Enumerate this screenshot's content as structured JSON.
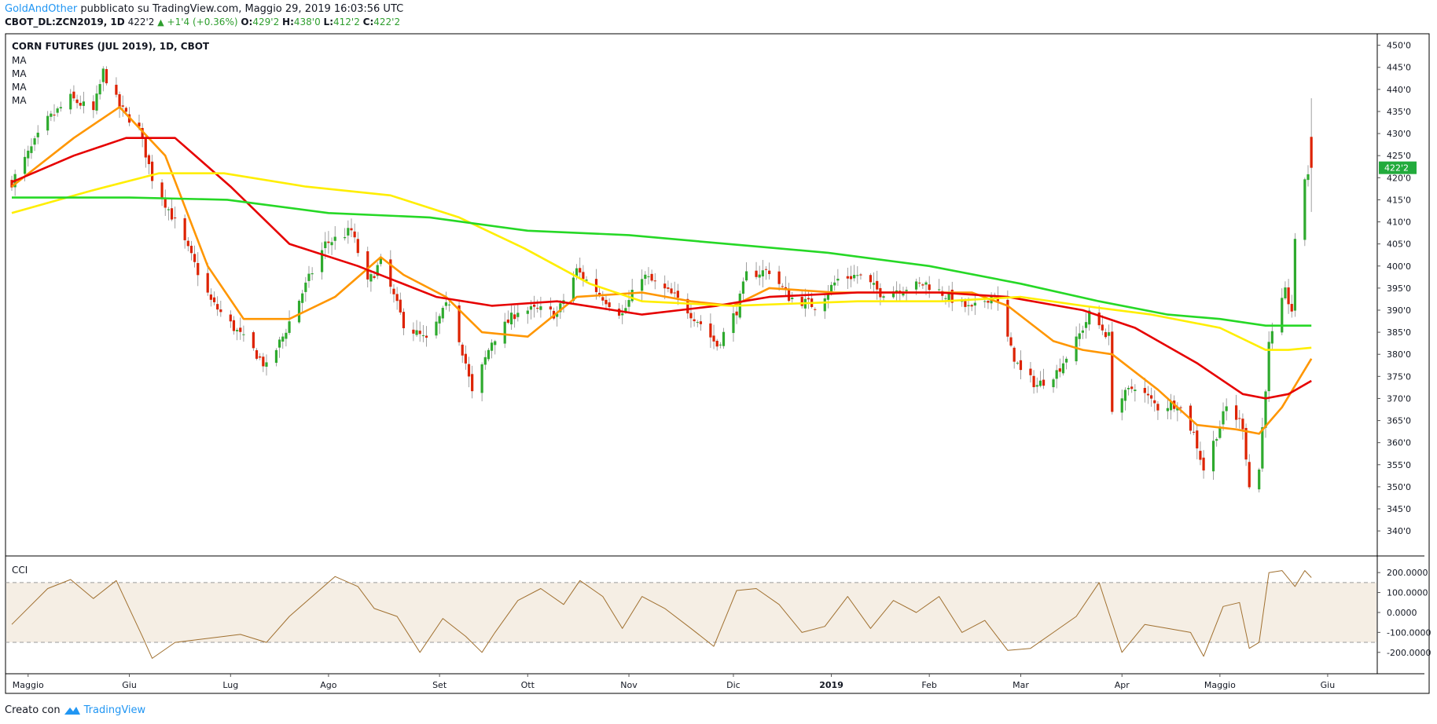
{
  "header": {
    "author": "GoldAndOther",
    "published": "pubblicato su TradingView.com, Maggio 29, 2019 16:03:56 UTC",
    "symbol": "CBOT_DL:ZCN2019, 1D",
    "last": "422'2",
    "change": "+1'4 (+0.36%)",
    "o_label": "O:",
    "o_value": "429'2",
    "h_label": "H:",
    "h_value": "438'0",
    "l_label": "L:",
    "l_value": "412'2",
    "c_label": "C:",
    "c_value": "422'2"
  },
  "footer": {
    "created_with": "Creato con",
    "brand": "TradingView"
  },
  "colors": {
    "up": "#2eaa2e",
    "down": "#dd2200",
    "ma_fast": "#ff9600",
    "ma_mid": "#e60000",
    "ma_slow": "#ffee00",
    "ma_long": "#26d826",
    "cci_line": "#a07030",
    "cci_band": "#f5eee4",
    "price_tag": "#22ab3c"
  },
  "chart_data": [
    {
      "type": "candlestick",
      "title": "CORN FUTURES (JUL 2019), 1D, CBOT",
      "indicators": [
        "MA",
        "MA",
        "MA",
        "MA"
      ],
      "y_unit": "US cents/bushel (quoted in fractional ticks)",
      "ylim": [
        337,
        451
      ],
      "y_ticks": [
        340,
        345,
        350,
        355,
        360,
        365,
        370,
        375,
        380,
        385,
        390,
        395,
        400,
        405,
        410,
        415,
        420,
        425,
        430,
        435,
        440,
        445,
        450
      ],
      "y_tick_labels": [
        "340'0",
        "345'0",
        "350'0",
        "355'0",
        "360'0",
        "365'0",
        "370'0",
        "375'0",
        "380'0",
        "385'0",
        "390'0",
        "395'0",
        "400'0",
        "405'0",
        "410'0",
        "415'0",
        "420'0",
        "425'0",
        "430'0",
        "435'0",
        "440'0",
        "445'0",
        "450'0"
      ],
      "last_price_label": "422'2",
      "last_price": 422.25,
      "x_labels": [
        "Maggio",
        "Giu",
        "Lug",
        "Ago",
        "Set",
        "Ott",
        "Nov",
        "Dic",
        "2019",
        "Feb",
        "Mar",
        "Apr",
        "Maggio",
        "Giu"
      ],
      "x_label_dates": [
        "2018-05-01",
        "2018-06-01",
        "2018-07-02",
        "2018-08-01",
        "2018-09-04",
        "2018-10-01",
        "2018-11-01",
        "2018-12-03",
        "2019-01-02",
        "2019-02-01",
        "2019-03-01",
        "2019-04-01",
        "2019-05-01",
        "2019-06-03"
      ],
      "price_path": [
        [
          "2018-04-26",
          419
        ],
        [
          "2018-05-07",
          433
        ],
        [
          "2018-05-14",
          438
        ],
        [
          "2018-05-21",
          435
        ],
        [
          "2018-05-24",
          444
        ],
        [
          "2018-05-29",
          436
        ],
        [
          "2018-06-04",
          431
        ],
        [
          "2018-06-08",
          420
        ],
        [
          "2018-06-15",
          410
        ],
        [
          "2018-06-20",
          402
        ],
        [
          "2018-06-26",
          392
        ],
        [
          "2018-07-03",
          386
        ],
        [
          "2018-07-10",
          380
        ],
        [
          "2018-07-13",
          377
        ],
        [
          "2018-07-18",
          384
        ],
        [
          "2018-07-24",
          394
        ],
        [
          "2018-07-31",
          405
        ],
        [
          "2018-08-08",
          408
        ],
        [
          "2018-08-13",
          396
        ],
        [
          "2018-08-17",
          401
        ],
        [
          "2018-08-24",
          387
        ],
        [
          "2018-08-31",
          383
        ],
        [
          "2018-09-07",
          392
        ],
        [
          "2018-09-12",
          378
        ],
        [
          "2018-09-14",
          371
        ],
        [
          "2018-09-20",
          383
        ],
        [
          "2018-09-28",
          390
        ],
        [
          "2018-10-05",
          390
        ],
        [
          "2018-10-10",
          389
        ],
        [
          "2018-10-16",
          399
        ],
        [
          "2018-10-24",
          393
        ],
        [
          "2018-10-30",
          389
        ],
        [
          "2018-11-05",
          398
        ],
        [
          "2018-11-09",
          396
        ],
        [
          "2018-11-15",
          393
        ],
        [
          "2018-11-23",
          387
        ],
        [
          "2018-11-28",
          382
        ],
        [
          "2018-12-04",
          390
        ],
        [
          "2018-12-07",
          398
        ],
        [
          "2018-12-14",
          399
        ],
        [
          "2018-12-20",
          393
        ],
        [
          "2018-12-28",
          391
        ],
        [
          "2019-01-04",
          397
        ],
        [
          "2019-01-10",
          398
        ],
        [
          "2019-01-17",
          394
        ],
        [
          "2019-01-24",
          395
        ],
        [
          "2019-01-31",
          396
        ],
        [
          "2019-02-07",
          393
        ],
        [
          "2019-02-14",
          390
        ],
        [
          "2019-02-21",
          394
        ],
        [
          "2019-02-26",
          381
        ],
        [
          "2019-03-01",
          376
        ],
        [
          "2019-03-06",
          373
        ],
        [
          "2019-03-12",
          376
        ],
        [
          "2019-03-18",
          383
        ],
        [
          "2019-03-22",
          389
        ],
        [
          "2019-03-28",
          384
        ],
        [
          "2019-03-29",
          368
        ],
        [
          "2019-04-05",
          373
        ],
        [
          "2019-04-12",
          368
        ],
        [
          "2019-04-18",
          369
        ],
        [
          "2019-04-23",
          362
        ],
        [
          "2019-04-26",
          354
        ],
        [
          "2019-04-30",
          362
        ],
        [
          "2019-05-03",
          368
        ],
        [
          "2019-05-08",
          364
        ],
        [
          "2019-05-10",
          350
        ],
        [
          "2019-05-13",
          354
        ],
        [
          "2019-05-16",
          382
        ],
        [
          "2019-05-21",
          394
        ],
        [
          "2019-05-23",
          390
        ],
        [
          "2019-05-24",
          405
        ],
        [
          "2019-05-27",
          420
        ],
        [
          "2019-05-29",
          422.25
        ]
      ],
      "moving_averages": [
        {
          "color": "#ff9600",
          "path": [
            [
              "2018-04-26",
              418
            ],
            [
              "2018-05-15",
              429
            ],
            [
              "2018-05-29",
              436
            ],
            [
              "2018-06-12",
              425
            ],
            [
              "2018-06-25",
              400
            ],
            [
              "2018-07-06",
              388
            ],
            [
              "2018-07-20",
              388
            ],
            [
              "2018-08-03",
              393
            ],
            [
              "2018-08-17",
              402
            ],
            [
              "2018-08-24",
              398
            ],
            [
              "2018-09-06",
              393
            ],
            [
              "2018-09-17",
              385
            ],
            [
              "2018-10-01",
              384
            ],
            [
              "2018-10-16",
              393
            ],
            [
              "2018-11-05",
              394
            ],
            [
              "2018-11-20",
              392
            ],
            [
              "2018-12-03",
              391
            ],
            [
              "2018-12-14",
              395
            ],
            [
              "2019-01-03",
              394
            ],
            [
              "2019-01-24",
              394
            ],
            [
              "2019-02-14",
              394
            ],
            [
              "2019-02-25",
              391
            ],
            [
              "2019-03-11",
              383
            ],
            [
              "2019-03-20",
              381
            ],
            [
              "2019-03-29",
              380
            ],
            [
              "2019-04-12",
              372
            ],
            [
              "2019-04-24",
              364
            ],
            [
              "2019-05-06",
              363
            ],
            [
              "2019-05-13",
              362
            ],
            [
              "2019-05-20",
              368
            ],
            [
              "2019-05-29",
              379
            ]
          ]
        },
        {
          "color": "#e60000",
          "path": [
            [
              "2018-04-26",
              419
            ],
            [
              "2018-05-15",
              425
            ],
            [
              "2018-05-31",
              429
            ],
            [
              "2018-06-15",
              429
            ],
            [
              "2018-07-02",
              418
            ],
            [
              "2018-07-20",
              405
            ],
            [
              "2018-08-10",
              400
            ],
            [
              "2018-09-03",
              393
            ],
            [
              "2018-09-20",
              391
            ],
            [
              "2018-10-10",
              392
            ],
            [
              "2018-11-05",
              389
            ],
            [
              "2018-11-28",
              391
            ],
            [
              "2018-12-14",
              393
            ],
            [
              "2019-01-10",
              394
            ],
            [
              "2019-02-04",
              394
            ],
            [
              "2019-02-25",
              393
            ],
            [
              "2019-03-20",
              390
            ],
            [
              "2019-04-05",
              386
            ],
            [
              "2019-04-24",
              378
            ],
            [
              "2019-05-08",
              371
            ],
            [
              "2019-05-15",
              370
            ],
            [
              "2019-05-22",
              371
            ],
            [
              "2019-05-29",
              374
            ]
          ]
        },
        {
          "color": "#ffee00",
          "path": [
            [
              "2018-04-26",
              412
            ],
            [
              "2018-05-20",
              417
            ],
            [
              "2018-06-10",
              421
            ],
            [
              "2018-06-30",
              421
            ],
            [
              "2018-07-25",
              418
            ],
            [
              "2018-08-20",
              416
            ],
            [
              "2018-09-10",
              411
            ],
            [
              "2018-09-30",
              404
            ],
            [
              "2018-10-20",
              396
            ],
            [
              "2018-11-05",
              392
            ],
            [
              "2018-12-03",
              391
            ],
            [
              "2019-01-10",
              392
            ],
            [
              "2019-02-05",
              392
            ],
            [
              "2019-03-01",
              393
            ],
            [
              "2019-03-20",
              391
            ],
            [
              "2019-04-10",
              389
            ],
            [
              "2019-05-01",
              386
            ],
            [
              "2019-05-15",
              381
            ],
            [
              "2019-05-22",
              381
            ],
            [
              "2019-05-29",
              381.5
            ]
          ]
        },
        {
          "color": "#26d826",
          "path": [
            [
              "2018-04-26",
              415.5
            ],
            [
              "2018-06-01",
              415.5
            ],
            [
              "2018-07-01",
              415
            ],
            [
              "2018-08-01",
              412
            ],
            [
              "2018-09-01",
              411
            ],
            [
              "2018-10-01",
              408
            ],
            [
              "2018-11-01",
              407
            ],
            [
              "2018-12-01",
              405
            ],
            [
              "2019-01-01",
              403
            ],
            [
              "2019-02-01",
              400
            ],
            [
              "2019-03-01",
              396
            ],
            [
              "2019-03-25",
              392
            ],
            [
              "2019-04-15",
              389
            ],
            [
              "2019-05-01",
              388
            ],
            [
              "2019-05-15",
              386.5
            ],
            [
              "2019-05-29",
              386.5
            ]
          ]
        }
      ]
    },
    {
      "type": "line",
      "title": "CCI",
      "ylim": [
        -260,
        240
      ],
      "y_ticks": [
        200,
        100,
        0,
        -100,
        -200
      ],
      "y_tick_labels": [
        "200.0000",
        "100.0000",
        "0.0000",
        "-100.0000",
        "-200.0000"
      ],
      "band": [
        -150,
        150
      ],
      "path": [
        [
          "2018-04-26",
          -60
        ],
        [
          "2018-05-07",
          120
        ],
        [
          "2018-05-14",
          165
        ],
        [
          "2018-05-21",
          70
        ],
        [
          "2018-05-28",
          160
        ],
        [
          "2018-06-01",
          20
        ],
        [
          "2018-06-05",
          -120
        ],
        [
          "2018-06-08",
          -230
        ],
        [
          "2018-06-15",
          -150
        ],
        [
          "2018-06-25",
          -130
        ],
        [
          "2018-07-05",
          -110
        ],
        [
          "2018-07-13",
          -150
        ],
        [
          "2018-07-20",
          -20
        ],
        [
          "2018-07-27",
          80
        ],
        [
          "2018-08-03",
          180
        ],
        [
          "2018-08-10",
          130
        ],
        [
          "2018-08-15",
          20
        ],
        [
          "2018-08-22",
          -20
        ],
        [
          "2018-08-29",
          -200
        ],
        [
          "2018-09-05",
          -30
        ],
        [
          "2018-09-12",
          -120
        ],
        [
          "2018-09-17",
          -200
        ],
        [
          "2018-09-21",
          -100
        ],
        [
          "2018-09-28",
          60
        ],
        [
          "2018-10-05",
          120
        ],
        [
          "2018-10-12",
          40
        ],
        [
          "2018-10-17",
          160
        ],
        [
          "2018-10-24",
          80
        ],
        [
          "2018-10-30",
          -80
        ],
        [
          "2018-11-05",
          80
        ],
        [
          "2018-11-12",
          20
        ],
        [
          "2018-11-20",
          -80
        ],
        [
          "2018-11-27",
          -170
        ],
        [
          "2018-12-04",
          110
        ],
        [
          "2018-12-10",
          120
        ],
        [
          "2018-12-17",
          40
        ],
        [
          "2018-12-24",
          -100
        ],
        [
          "2018-12-31",
          -70
        ],
        [
          "2019-01-07",
          80
        ],
        [
          "2019-01-14",
          -80
        ],
        [
          "2019-01-21",
          60
        ],
        [
          "2019-01-28",
          0
        ],
        [
          "2019-02-04",
          80
        ],
        [
          "2019-02-11",
          -100
        ],
        [
          "2019-02-18",
          -40
        ],
        [
          "2019-02-25",
          -190
        ],
        [
          "2019-03-04",
          -180
        ],
        [
          "2019-03-11",
          -100
        ],
        [
          "2019-03-18",
          -20
        ],
        [
          "2019-03-25",
          150
        ],
        [
          "2019-03-28",
          0
        ],
        [
          "2019-04-01",
          -200
        ],
        [
          "2019-04-08",
          -60
        ],
        [
          "2019-04-15",
          -80
        ],
        [
          "2019-04-22",
          -100
        ],
        [
          "2019-04-26",
          -220
        ],
        [
          "2019-05-02",
          30
        ],
        [
          "2019-05-07",
          50
        ],
        [
          "2019-05-10",
          -180
        ],
        [
          "2019-05-13",
          -150
        ],
        [
          "2019-05-16",
          200
        ],
        [
          "2019-05-20",
          210
        ],
        [
          "2019-05-24",
          130
        ],
        [
          "2019-05-27",
          210
        ],
        [
          "2019-05-29",
          175
        ]
      ]
    }
  ]
}
